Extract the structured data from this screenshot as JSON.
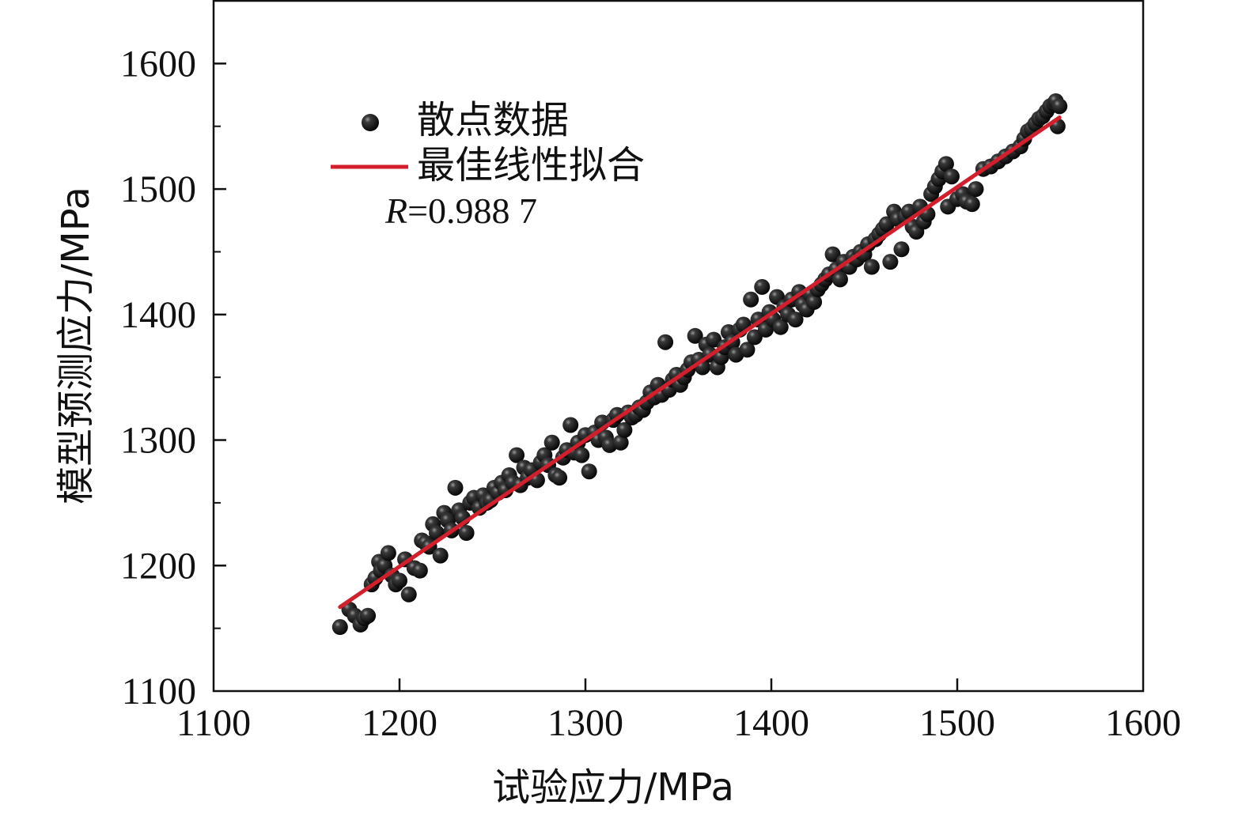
{
  "chart_data": {
    "type": "scatter",
    "xlabel": "试验应力/MPa",
    "ylabel": "模型预测应力/MPa",
    "xlim": [
      1100,
      1600
    ],
    "ylim": [
      1100,
      1650
    ],
    "xticks": [
      "1100",
      "1200",
      "1300",
      "1400",
      "1500",
      "1600"
    ],
    "yticks": [
      "1100",
      "1200",
      "1300",
      "1400",
      "1500",
      "1600"
    ],
    "grid": false,
    "legend": {
      "placement": "top-left",
      "entries": [
        {
          "label": "散点数据",
          "marker": "sphere",
          "color": "#111111"
        },
        {
          "label": "最佳线性拟合",
          "marker": "line",
          "color": "#d21f2b"
        }
      ]
    },
    "annotation": {
      "label": "R",
      "value": "=0.988 7"
    },
    "fit_line": {
      "x": [
        1168,
        1555
      ],
      "y": [
        1167,
        1557
      ],
      "color": "#d21f2b"
    },
    "series": [
      {
        "type": "scatter",
        "color": "#111111",
        "points": [
          [
            1168,
            1151
          ],
          [
            1173,
            1165
          ],
          [
            1176,
            1160
          ],
          [
            1179,
            1153
          ],
          [
            1181,
            1158
          ],
          [
            1183,
            1160
          ],
          [
            1185,
            1185
          ],
          [
            1187,
            1190
          ],
          [
            1189,
            1203
          ],
          [
            1190,
            1196
          ],
          [
            1192,
            1200
          ],
          [
            1194,
            1210
          ],
          [
            1196,
            1192
          ],
          [
            1198,
            1185
          ],
          [
            1200,
            1188
          ],
          [
            1203,
            1205
          ],
          [
            1205,
            1177
          ],
          [
            1208,
            1198
          ],
          [
            1211,
            1196
          ],
          [
            1212,
            1220
          ],
          [
            1214,
            1218
          ],
          [
            1216,
            1215
          ],
          [
            1218,
            1233
          ],
          [
            1220,
            1226
          ],
          [
            1222,
            1208
          ],
          [
            1224,
            1242
          ],
          [
            1226,
            1236
          ],
          [
            1228,
            1228
          ],
          [
            1230,
            1262
          ],
          [
            1232,
            1244
          ],
          [
            1234,
            1238
          ],
          [
            1236,
            1226
          ],
          [
            1238,
            1250
          ],
          [
            1240,
            1254
          ],
          [
            1243,
            1246
          ],
          [
            1245,
            1256
          ],
          [
            1247,
            1250
          ],
          [
            1249,
            1252
          ],
          [
            1251,
            1262
          ],
          [
            1253,
            1258
          ],
          [
            1255,
            1266
          ],
          [
            1257,
            1260
          ],
          [
            1259,
            1272
          ],
          [
            1261,
            1266
          ],
          [
            1263,
            1288
          ],
          [
            1265,
            1264
          ],
          [
            1267,
            1278
          ],
          [
            1269,
            1270
          ],
          [
            1271,
            1276
          ],
          [
            1274,
            1268
          ],
          [
            1276,
            1282
          ],
          [
            1278,
            1288
          ],
          [
            1280,
            1280
          ],
          [
            1282,
            1298
          ],
          [
            1284,
            1272
          ],
          [
            1286,
            1270
          ],
          [
            1288,
            1286
          ],
          [
            1290,
            1292
          ],
          [
            1292,
            1312
          ],
          [
            1294,
            1290
          ],
          [
            1296,
            1298
          ],
          [
            1298,
            1288
          ],
          [
            1300,
            1304
          ],
          [
            1302,
            1275
          ],
          [
            1305,
            1306
          ],
          [
            1307,
            1300
          ],
          [
            1309,
            1314
          ],
          [
            1311,
            1302
          ],
          [
            1313,
            1296
          ],
          [
            1315,
            1316
          ],
          [
            1317,
            1320
          ],
          [
            1319,
            1298
          ],
          [
            1321,
            1308
          ],
          [
            1323,
            1322
          ],
          [
            1325,
            1318
          ],
          [
            1327,
            1320
          ],
          [
            1329,
            1326
          ],
          [
            1331,
            1324
          ],
          [
            1333,
            1330
          ],
          [
            1335,
            1338
          ],
          [
            1337,
            1334
          ],
          [
            1339,
            1344
          ],
          [
            1341,
            1336
          ],
          [
            1343,
            1378
          ],
          [
            1345,
            1340
          ],
          [
            1347,
            1348
          ],
          [
            1349,
            1352
          ],
          [
            1351,
            1344
          ],
          [
            1353,
            1350
          ],
          [
            1355,
            1356
          ],
          [
            1357,
            1362
          ],
          [
            1359,
            1383
          ],
          [
            1361,
            1364
          ],
          [
            1363,
            1358
          ],
          [
            1365,
            1376
          ],
          [
            1367,
            1368
          ],
          [
            1369,
            1380
          ],
          [
            1371,
            1358
          ],
          [
            1373,
            1366
          ],
          [
            1375,
            1374
          ],
          [
            1377,
            1386
          ],
          [
            1379,
            1378
          ],
          [
            1381,
            1368
          ],
          [
            1383,
            1388
          ],
          [
            1385,
            1392
          ],
          [
            1387,
            1372
          ],
          [
            1389,
            1412
          ],
          [
            1391,
            1382
          ],
          [
            1393,
            1396
          ],
          [
            1395,
            1422
          ],
          [
            1397,
            1388
          ],
          [
            1399,
            1402
          ],
          [
            1401,
            1396
          ],
          [
            1403,
            1414
          ],
          [
            1405,
            1390
          ],
          [
            1407,
            1406
          ],
          [
            1409,
            1400
          ],
          [
            1411,
            1412
          ],
          [
            1413,
            1396
          ],
          [
            1415,
            1418
          ],
          [
            1417,
            1408
          ],
          [
            1419,
            1404
          ],
          [
            1421,
            1416
          ],
          [
            1423,
            1410
          ],
          [
            1425,
            1420
          ],
          [
            1427,
            1424
          ],
          [
            1429,
            1428
          ],
          [
            1431,
            1432
          ],
          [
            1433,
            1448
          ],
          [
            1435,
            1436
          ],
          [
            1437,
            1428
          ],
          [
            1439,
            1442
          ],
          [
            1442,
            1438
          ],
          [
            1444,
            1446
          ],
          [
            1446,
            1444
          ],
          [
            1448,
            1450
          ],
          [
            1450,
            1448
          ],
          [
            1452,
            1456
          ],
          [
            1454,
            1438
          ],
          [
            1456,
            1460
          ],
          [
            1458,
            1464
          ],
          [
            1460,
            1468
          ],
          [
            1462,
            1472
          ],
          [
            1464,
            1442
          ],
          [
            1466,
            1482
          ],
          [
            1468,
            1476
          ],
          [
            1470,
            1452
          ],
          [
            1472,
            1478
          ],
          [
            1474,
            1482
          ],
          [
            1476,
            1470
          ],
          [
            1478,
            1466
          ],
          [
            1480,
            1486
          ],
          [
            1482,
            1474
          ],
          [
            1484,
            1480
          ],
          [
            1486,
            1496
          ],
          [
            1488,
            1502
          ],
          [
            1490,
            1508
          ],
          [
            1492,
            1514
          ],
          [
            1494,
            1520
          ],
          [
            1495,
            1486
          ],
          [
            1497,
            1510
          ],
          [
            1500,
            1492
          ],
          [
            1503,
            1496
          ],
          [
            1505,
            1490
          ],
          [
            1508,
            1488
          ],
          [
            1510,
            1500
          ],
          [
            1514,
            1516
          ],
          [
            1518,
            1518
          ],
          [
            1522,
            1522
          ],
          [
            1526,
            1526
          ],
          [
            1530,
            1530
          ],
          [
            1534,
            1534
          ],
          [
            1536,
            1540
          ],
          [
            1538,
            1546
          ],
          [
            1540,
            1548
          ],
          [
            1542,
            1552
          ],
          [
            1544,
            1556
          ],
          [
            1546,
            1558
          ],
          [
            1548,
            1562
          ],
          [
            1550,
            1566
          ],
          [
            1552,
            1568
          ],
          [
            1553,
            1570
          ],
          [
            1554,
            1550
          ],
          [
            1555,
            1566
          ]
        ]
      }
    ]
  }
}
